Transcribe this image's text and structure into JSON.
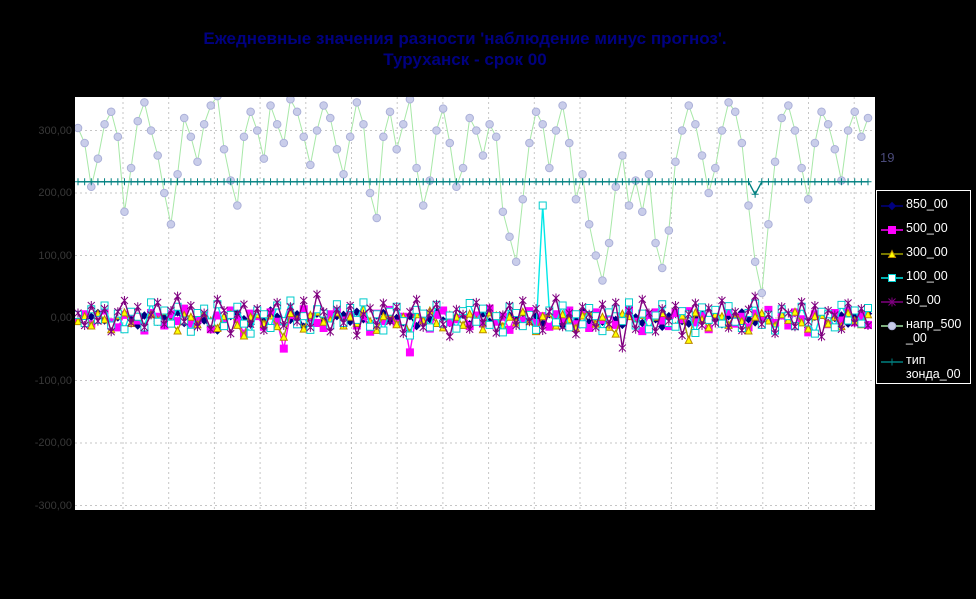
{
  "window": {
    "background": "#000000"
  },
  "title": {
    "line1": "Ежедневные значения разности 'наблюдение минус прогноз'.",
    "line2": "Туруханск - срок 00",
    "color": "#000080"
  },
  "annotation": {
    "text": "19"
  },
  "legend": {
    "position": "right",
    "items": [
      {
        "label": "850_00",
        "display": "850_00",
        "line_color": "#000080",
        "marker": "diamond",
        "marker_fill": "#000080",
        "marker_stroke": "#000080"
      },
      {
        "label": "500_00",
        "display": "500_00",
        "line_color": "#FF00FF",
        "marker": "square",
        "marker_fill": "#FF00FF",
        "marker_stroke": "#FF00FF"
      },
      {
        "label": "300_00",
        "display": "300_00",
        "line_color": "#A0A000",
        "marker": "triangle",
        "marker_fill": "#FFFF00",
        "marker_stroke": "#BB8800"
      },
      {
        "label": "100_00",
        "display": "100_00",
        "line_color": "#00E8E8",
        "marker": "square-open",
        "marker_fill": "#FFFFFF",
        "marker_stroke": "#00CCCC"
      },
      {
        "label": "50_00",
        "display": "50_00",
        "line_color": "#800080",
        "marker": "star",
        "marker_fill": "none",
        "marker_stroke": "#800080"
      },
      {
        "label": "напр_500_00",
        "display": "напр_500\n_00",
        "line_color": "#A8E8A8",
        "marker": "circle",
        "marker_fill": "#C9CDEA",
        "marker_stroke": "#ABB0D8"
      },
      {
        "label": "тип зонда_00",
        "display": "тип\nзонда_00",
        "line_color": "#008080",
        "marker": "plus",
        "marker_fill": "none",
        "marker_stroke": "#008080"
      }
    ]
  },
  "chart_data": {
    "type": "line",
    "title": "Ежедневные значения разности 'наблюдение минус прогноз'. Туруханск - срок 00",
    "xlabel": "",
    "ylabel": "",
    "legend_position": "right",
    "grid": true,
    "plot_background": "#FFFFFF",
    "gridline_color": "#C6C6C6",
    "ylim": [
      -307,
      353
    ],
    "x_count": 120,
    "y_ticks": [
      {
        "value": 300,
        "label": "300,00"
      },
      {
        "value": 200,
        "label": "200,00"
      },
      {
        "value": 100,
        "label": "100,00"
      },
      {
        "value": 0,
        "label": "0,00"
      },
      {
        "value": -100,
        "label": "-100,00"
      },
      {
        "value": -200,
        "label": "-200,00"
      },
      {
        "value": -300,
        "label": "-300,00"
      }
    ],
    "series": [
      {
        "name": "850_00",
        "line_color": "#000080",
        "marker": "diamond",
        "marker_fill": "#000080",
        "marker_stroke": "#000080",
        "values": [
          3,
          -5,
          2,
          8,
          -4,
          -9,
          1,
          6,
          -2,
          -12,
          4,
          7,
          -6,
          2,
          -3,
          9,
          -8,
          0,
          5,
          -4,
          -15,
          -20,
          -6,
          3,
          8,
          -2,
          -10,
          4,
          -5,
          12,
          2,
          -8,
          -3,
          6,
          -14,
          1,
          7,
          -4,
          -9,
          3,
          5,
          -6,
          10,
          -2,
          -11,
          4,
          8,
          -5,
          0,
          -7,
          3,
          -13,
          6,
          -2,
          9,
          -4,
          -8,
          2,
          5,
          -10,
          -3,
          7,
          -6,
          1,
          -16,
          4,
          -2,
          8,
          -5,
          3,
          -9,
          6,
          0,
          -12,
          5,
          -4,
          10,
          -7,
          2,
          -6,
          8,
          -3,
          -11,
          4,
          1,
          -8,
          5,
          -2,
          -14,
          3,
          7,
          -5,
          -9,
          2,
          6,
          -4,
          0,
          -10,
          3,
          -6,
          9,
          -2,
          -7,
          5,
          1,
          -12,
          4,
          -5,
          8,
          -3,
          -15,
          2,
          6,
          -8,
          0,
          4,
          -9,
          3,
          -5,
          7
        ]
      },
      {
        "name": "500_00",
        "line_color": "#FF00FF",
        "marker": "square",
        "marker_fill": "#FF00FF",
        "marker_stroke": "#FF00FF",
        "values": [
          -2,
          6,
          -10,
          3,
          12,
          -7,
          -15,
          5,
          9,
          -4,
          -20,
          8,
          2,
          -12,
          6,
          -5,
          15,
          -9,
          -3,
          10,
          -18,
          4,
          -8,
          12,
          -2,
          -25,
          7,
          3,
          -14,
          9,
          -6,
          -49,
          5,
          -10,
          14,
          2,
          -8,
          -16,
          6,
          11,
          -4,
          9,
          -12,
          3,
          -22,
          7,
          -5,
          13,
          -9,
          2,
          -55,
          8,
          -3,
          -17,
          5,
          12,
          -7,
          -2,
          10,
          -13,
          4,
          -9,
          15,
          -6,
          2,
          -19,
          8,
          -4,
          11,
          -8,
          3,
          -14,
          6,
          -2,
          12,
          -10,
          5,
          -16,
          9,
          -3,
          7,
          -11,
          2,
          14,
          -6,
          -21,
          5,
          9,
          -4,
          -13,
          8,
          -2,
          11,
          -7,
          3,
          -18,
          6,
          -5,
          10,
          -9,
          2,
          -15,
          7,
          -3,
          13,
          -8,
          4,
          -12,
          9,
          -2,
          -23,
          6,
          5,
          -10,
          8,
          -4,
          12,
          -7,
          3,
          -11
        ]
      },
      {
        "name": "300_00",
        "line_color": "#A0A000",
        "marker": "triangle",
        "marker_fill": "#FFFF00",
        "marker_stroke": "#BB8800",
        "values": [
          -5,
          3,
          -12,
          7,
          -2,
          -18,
          4,
          9,
          -8,
          2,
          -14,
          6,
          -3,
          11,
          -7,
          -20,
          5,
          2,
          -10,
          8,
          -4,
          -16,
          3,
          7,
          -11,
          -28,
          2,
          6,
          -9,
          4,
          -13,
          -30,
          8,
          -2,
          -17,
          5,
          10,
          -6,
          -3,
          9,
          -12,
          2,
          -8,
          14,
          -5,
          -19,
          3,
          7,
          -10,
          2,
          -24,
          6,
          -4,
          12,
          -8,
          -15,
          5,
          2,
          -11,
          7,
          -3,
          -18,
          9,
          4,
          -13,
          2,
          -7,
          10,
          -5,
          -21,
          3,
          8,
          -12,
          6,
          -2,
          -16,
          4,
          11,
          -9,
          2,
          -14,
          -25,
          7,
          3,
          -10,
          5,
          -18,
          2,
          8,
          -6,
          -13,
          4,
          -35,
          9,
          -2,
          -15,
          6,
          3,
          -11,
          7,
          -5,
          -20,
          2,
          8,
          -4,
          -12,
          6,
          -3,
          10,
          -7,
          -17,
          3,
          5,
          -9,
          2,
          -13,
          8,
          -4,
          -10,
          6
        ]
      },
      {
        "name": "100_00",
        "line_color": "#00E8E8",
        "marker": "square-open",
        "marker_fill": "#FFFFFF",
        "marker_stroke": "#00CCCC",
        "values": [
          5,
          -8,
          14,
          -3,
          20,
          -12,
          7,
          -18,
          10,
          2,
          -15,
          25,
          -6,
          12,
          -9,
          18,
          -4,
          -22,
          8,
          15,
          -7,
          22,
          -13,
          5,
          18,
          -9,
          -25,
          12,
          6,
          -16,
          20,
          -5,
          28,
          -10,
          3,
          -19,
          14,
          7,
          -12,
          22,
          -8,
          16,
          -3,
          25,
          -14,
          6,
          -20,
          10,
          18,
          -5,
          -28,
          13,
          7,
          -15,
          21,
          -9,
          4,
          -17,
          11,
          24,
          -6,
          15,
          -11,
          3,
          -23,
          18,
          8,
          -13,
          5,
          -19,
          180,
          12,
          -7,
          20,
          -15,
          6,
          -10,
          16,
          3,
          -21,
          9,
          14,
          -5,
          25,
          -12,
          7,
          -18,
          4,
          22,
          -8,
          -14,
          11,
          6,
          -24,
          17,
          -3,
          13,
          -9,
          19,
          -6,
          -16,
          8,
          23,
          -11,
          5,
          -20,
          14,
          3,
          -13,
          18,
          -7,
          -25,
          10,
          6,
          -15,
          21,
          -4,
          12,
          -9,
          16
        ]
      },
      {
        "name": "50_00",
        "line_color": "#800080",
        "marker": "star",
        "marker_fill": "none",
        "marker_stroke": "#800080",
        "values": [
          8,
          -12,
          20,
          -5,
          15,
          -22,
          10,
          28,
          -8,
          18,
          -15,
          5,
          25,
          -10,
          12,
          35,
          -6,
          20,
          -14,
          8,
          -18,
          30,
          12,
          -25,
          6,
          22,
          -10,
          15,
          -20,
          8,
          25,
          -12,
          18,
          -6,
          28,
          -15,
          38,
          10,
          -22,
          14,
          -8,
          20,
          -28,
          6,
          16,
          -12,
          24,
          -5,
          18,
          -25,
          10,
          30,
          -15,
          8,
          22,
          -10,
          -30,
          14,
          6,
          -18,
          25,
          -8,
          16,
          -24,
          5,
          20,
          -12,
          28,
          -6,
          15,
          -20,
          10,
          32,
          -14,
          8,
          -26,
          18,
          6,
          -15,
          22,
          -10,
          25,
          -48,
          12,
          -18,
          30,
          8,
          -22,
          15,
          -5,
          20,
          -28,
          6,
          24,
          -12,
          16,
          -8,
          28,
          -16,
          10,
          -20,
          14,
          35,
          -10,
          6,
          -25,
          18,
          8,
          -14,
          26,
          -6,
          20,
          -30,
          12,
          5,
          -18,
          24,
          -8,
          15,
          -12
        ]
      },
      {
        "name": "напр_500_00",
        "line_color": "#A8E8A8",
        "marker": "circle",
        "marker_fill": "#C9CDEA",
        "marker_stroke": "#ABB0D8",
        "values": [
          304,
          280,
          210,
          255,
          310,
          330,
          290,
          170,
          240,
          315,
          345,
          300,
          260,
          200,
          150,
          230,
          320,
          290,
          250,
          310,
          340,
          355,
          270,
          220,
          180,
          290,
          330,
          300,
          255,
          340,
          310,
          280,
          350,
          330,
          290,
          245,
          300,
          340,
          320,
          270,
          230,
          290,
          345,
          310,
          200,
          160,
          290,
          330,
          270,
          310,
          350,
          240,
          180,
          220,
          300,
          335,
          280,
          210,
          240,
          320,
          300,
          260,
          310,
          290,
          170,
          130,
          90,
          190,
          280,
          330,
          310,
          240,
          300,
          340,
          280,
          190,
          230,
          150,
          100,
          60,
          120,
          210,
          260,
          180,
          220,
          170,
          230,
          120,
          80,
          140,
          250,
          300,
          340,
          310,
          260,
          200,
          240,
          300,
          345,
          330,
          280,
          180,
          90,
          40,
          150,
          250,
          320,
          340,
          300,
          240,
          190,
          280,
          330,
          310,
          270,
          220,
          300,
          330,
          290,
          320
        ]
      },
      {
        "name": "тип зонда_00",
        "line_color": "#008080",
        "marker": "plus",
        "marker_fill": "none",
        "marker_stroke": "#008080",
        "values": [
          218,
          218,
          218,
          218,
          218,
          218,
          218,
          218,
          218,
          218,
          218,
          218,
          218,
          218,
          218,
          218,
          218,
          218,
          218,
          218,
          218,
          218,
          218,
          218,
          218,
          218,
          218,
          218,
          218,
          218,
          218,
          218,
          218,
          218,
          218,
          218,
          218,
          218,
          218,
          218,
          218,
          218,
          218,
          218,
          218,
          218,
          218,
          218,
          218,
          218,
          218,
          218,
          218,
          218,
          218,
          218,
          218,
          218,
          218,
          218,
          218,
          218,
          218,
          218,
          218,
          218,
          218,
          218,
          218,
          218,
          218,
          218,
          218,
          218,
          218,
          218,
          218,
          218,
          218,
          218,
          218,
          218,
          218,
          218,
          218,
          218,
          218,
          218,
          218,
          218,
          218,
          218,
          218,
          218,
          218,
          218,
          218,
          218,
          218,
          218,
          218,
          218,
          198,
          218,
          218,
          218,
          218,
          218,
          218,
          218,
          218,
          218,
          218,
          218,
          218,
          218,
          218,
          218,
          218,
          218
        ]
      }
    ]
  }
}
